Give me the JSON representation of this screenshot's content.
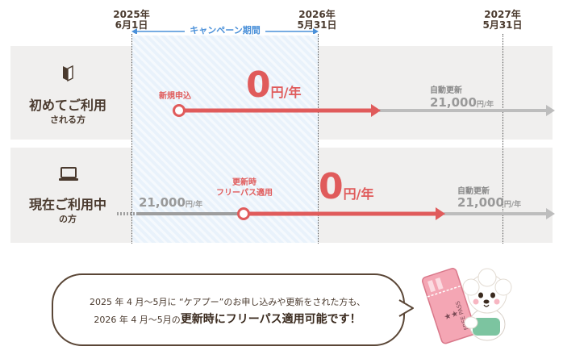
{
  "dates": {
    "start": {
      "year": "2025年",
      "day": "6月1日"
    },
    "mid": {
      "year": "2026年",
      "day": "5月31日"
    },
    "end": {
      "year": "2027年",
      "day": "5月31日"
    }
  },
  "campaign_label": "キャンペーン期間",
  "row1": {
    "title_line1": "初めてご利用",
    "title_line2": "される方",
    "start_label": "新規申込",
    "price_big": "0",
    "price_unit": "円/年",
    "renew_label": "自動更新",
    "renew_price": "21,000",
    "renew_unit": "円/年"
  },
  "row2": {
    "title_line1": "現在ご利用中",
    "title_line2": "の方",
    "prev_price": "21,000",
    "prev_unit": "円/年",
    "start_label_line1": "更新時",
    "start_label_line2": "フリーパス適用",
    "price_big": "0",
    "price_unit": "円/年",
    "renew_label": "自動更新",
    "renew_price": "21,000",
    "renew_unit": "円/年"
  },
  "bubble": {
    "line1": "2025 年 4 月～5月に “ケアプー”のお申し込みや更新をされた方も、",
    "line2_prefix": "2026 年 4 月～5月の",
    "line2_bold": "更新時にフリーパス適用可能です！"
  },
  "mascot": {
    "ticket_text": "FREE PASS",
    "stars": "★★"
  },
  "colors": {
    "accent_red": "#e05b5b",
    "campaign_blue": "#4a90d9",
    "gray_bar": "#bdbdbd",
    "row_bg": "#f0efee",
    "text_brown": "#4a3a2e"
  }
}
